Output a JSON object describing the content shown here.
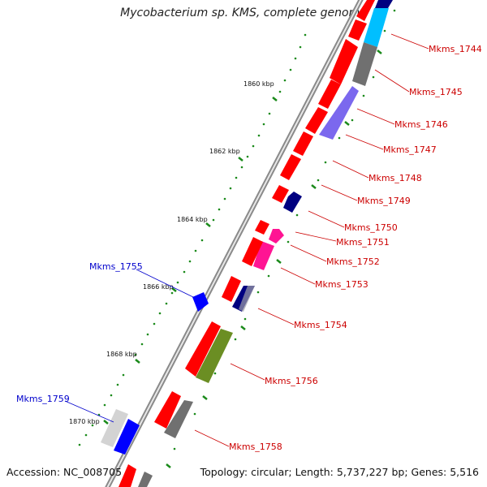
{
  "title": "Mycobacterium sp. KMS, complete genome",
  "accession_text": "Accession: NC_008705",
  "summary_text": "Topology: circular; Length: 5,737,227 bp; Genes: 5,516",
  "colors": {
    "red": "#ff0000",
    "label_red": "#cc0000",
    "label_blue": "#0000cc",
    "tick_green": "#1a8a1a",
    "backbone": "#888888"
  },
  "tick_labels": [
    "1860 kbp",
    "1862 kbp",
    "1864 kbp",
    "1866 kbp",
    "1868 kbp",
    "1870 kbp"
  ],
  "red_labels": [
    "Mkms_1744",
    "Mkms_1745",
    "Mkms_1746",
    "Mkms_1747",
    "Mkms_1748",
    "Mkms_1749",
    "Mkms_1750",
    "Mkms_1751",
    "Mkms_1752",
    "Mkms_1753",
    "Mkms_1754",
    "Mkms_1756",
    "Mkms_1758"
  ],
  "blue_labels": [
    "Mkms_1755",
    "Mkms_1759"
  ]
}
